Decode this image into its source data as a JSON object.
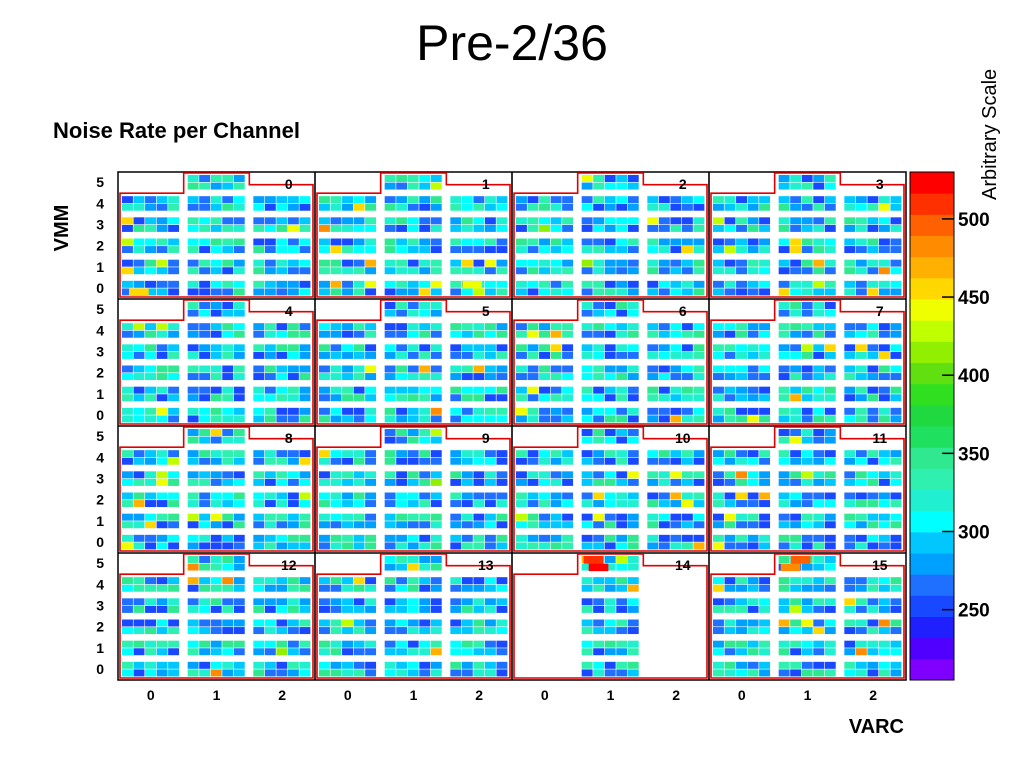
{
  "page": {
    "title": "Pre-2/36"
  },
  "chart_data": {
    "type": "heatmap",
    "title": "Noise Rate per Channel",
    "xlabel": "VARC",
    "ylabel": "VMM",
    "colorbar_label": "Arbitrary Scale",
    "colorbar_ticks": [
      250,
      300,
      350,
      400,
      450,
      500
    ],
    "colorbar_range": [
      205,
      530
    ],
    "colors": [
      "#8000ff",
      "#5000ff",
      "#2020ff",
      "#1848ff",
      "#2070ff",
      "#00a0ff",
      "#00c8ff",
      "#00ffff",
      "#20f0d0",
      "#30f0b0",
      "#30e890",
      "#20e060",
      "#20d840",
      "#30e020",
      "#60e010",
      "#90f000",
      "#c0ff00",
      "#f0ff00",
      "#ffd800",
      "#ffb000",
      "#ff8c00",
      "#ff6000",
      "#ff3000",
      "#ff0000"
    ],
    "x_tick_labels": [
      "0",
      "1",
      "2",
      "0",
      "1",
      "2",
      "0",
      "1",
      "2",
      "0",
      "1",
      "2"
    ],
    "y_tick_labels": [
      "0",
      "1",
      "2",
      "3",
      "4",
      "5"
    ],
    "blocks": [
      "0",
      "1",
      "2",
      "3",
      "4",
      "5",
      "6",
      "7",
      "8",
      "9",
      "10",
      "11",
      "12",
      "13",
      "14",
      "15"
    ],
    "empty_regions": [
      "14"
    ],
    "hot_values": [
      510,
      520,
      495,
      480,
      460,
      440
    ]
  }
}
